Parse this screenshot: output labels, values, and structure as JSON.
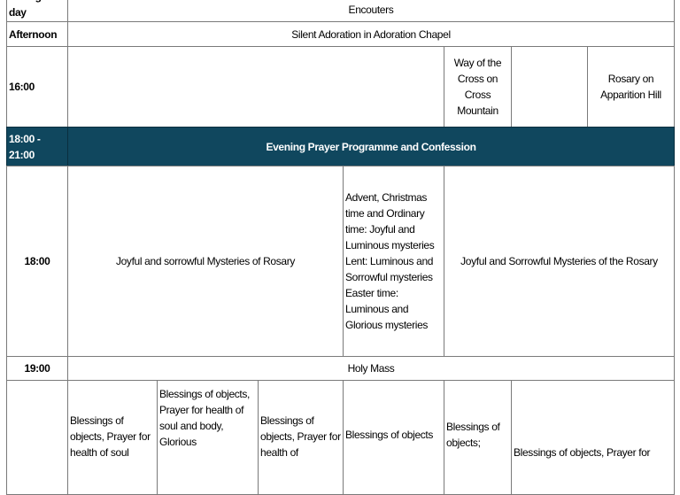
{
  "colors": {
    "header_band": "#10475e",
    "header_text": "#ffffff",
    "grid": "#7a7a7a"
  },
  "rows": [
    {
      "time": "During the day",
      "cells": [
        "Encouters"
      ]
    },
    {
      "time": "Afternoon",
      "cells": [
        "Silent Adoration in Adoration Chapel"
      ]
    },
    {
      "time": "16:00",
      "cells": [
        "",
        "Way of the Cross on Cross Mountain",
        "",
        "Rosary on Apparition Hill"
      ]
    },
    {
      "time": "18:00 - 21:00",
      "cells": [
        "Evening Prayer Programme and Confession"
      ]
    },
    {
      "time": "18:00",
      "cells": [
        "Joyful and sorrowful Mysteries of Rosary",
        "Advent, Christmas time and Ordinary time: Joyful and Luminous mysteries",
        "Lent: Luminous and Sorrowful mysteries",
        "Easter time: Luminous and Glorious mysteries",
        "Joyful and Sorrowful Mysteries of the Rosary"
      ]
    },
    {
      "time": "19:00",
      "cells": [
        "Holy Mass"
      ]
    },
    {
      "time": "",
      "cells": [
        "Blessings of objects, Prayer for health of soul",
        "Blessings of objects, Prayer for health of soul and body, Glorious",
        "Blessings of objects, Prayer for health of",
        "Blessings of objects",
        "Blessings of objects;",
        "Blessings of objects, Prayer for"
      ]
    }
  ]
}
